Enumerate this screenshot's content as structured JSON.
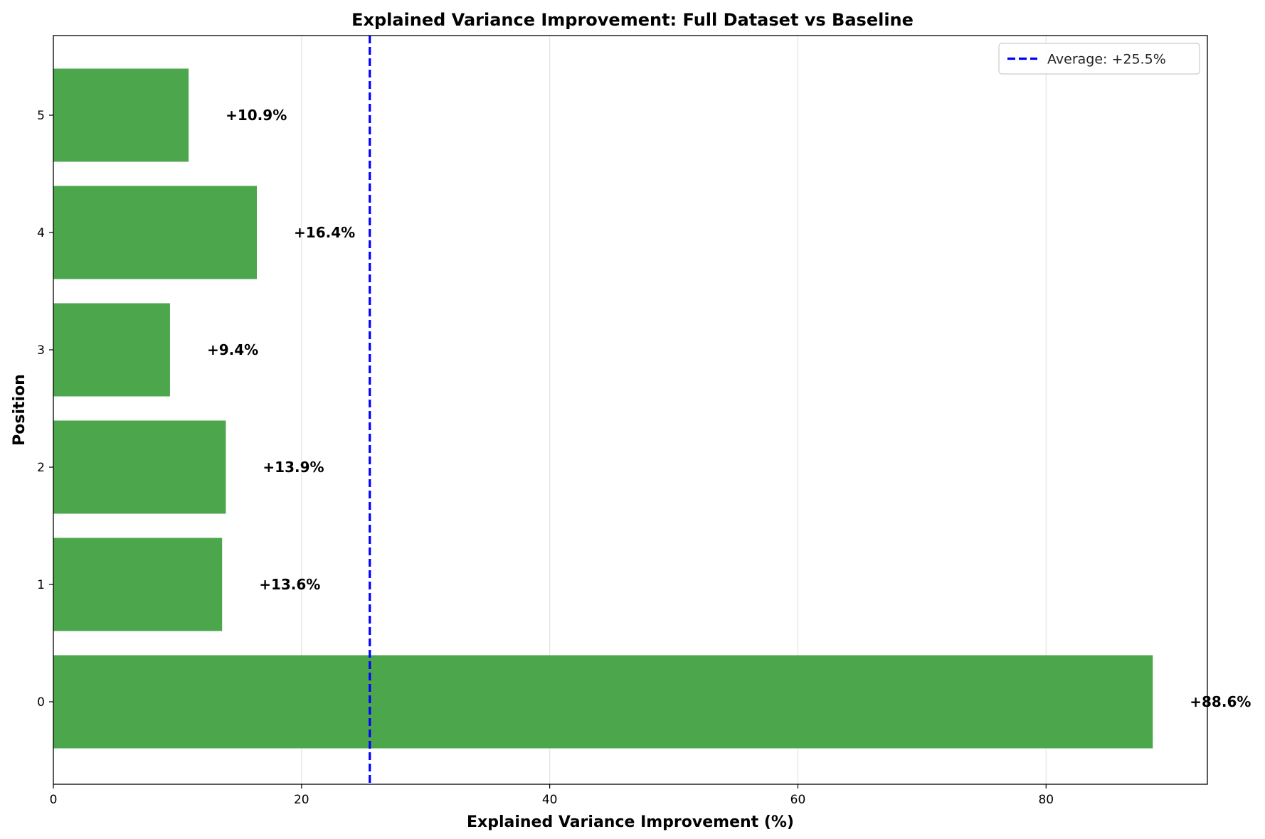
{
  "chart_data": {
    "type": "bar",
    "orientation": "horizontal",
    "title": "Explained Variance Improvement: Full Dataset vs Baseline",
    "xlabel": "Explained Variance Improvement (%)",
    "ylabel": "Position",
    "categories": [
      "0",
      "1",
      "2",
      "3",
      "4",
      "5"
    ],
    "values": [
      88.6,
      13.6,
      13.9,
      9.4,
      16.4,
      10.9
    ],
    "data_labels": [
      "+88.6%",
      "+13.6%",
      "+13.9%",
      "+9.4%",
      "+16.4%",
      "+10.9%"
    ],
    "xlim": [
      0,
      93
    ],
    "xticks": [
      0,
      20,
      40,
      60,
      80
    ],
    "xtick_labels": [
      "0",
      "20",
      "40",
      "60",
      "80"
    ],
    "grid": "x",
    "bar_color": "#4ca64c",
    "reference_line": {
      "value": 25.5,
      "style": "dashed",
      "color": "#0000ff",
      "label": "Average: +25.5%"
    },
    "legend": {
      "position": "top-right",
      "entries": [
        "Average: +25.5%"
      ]
    }
  }
}
